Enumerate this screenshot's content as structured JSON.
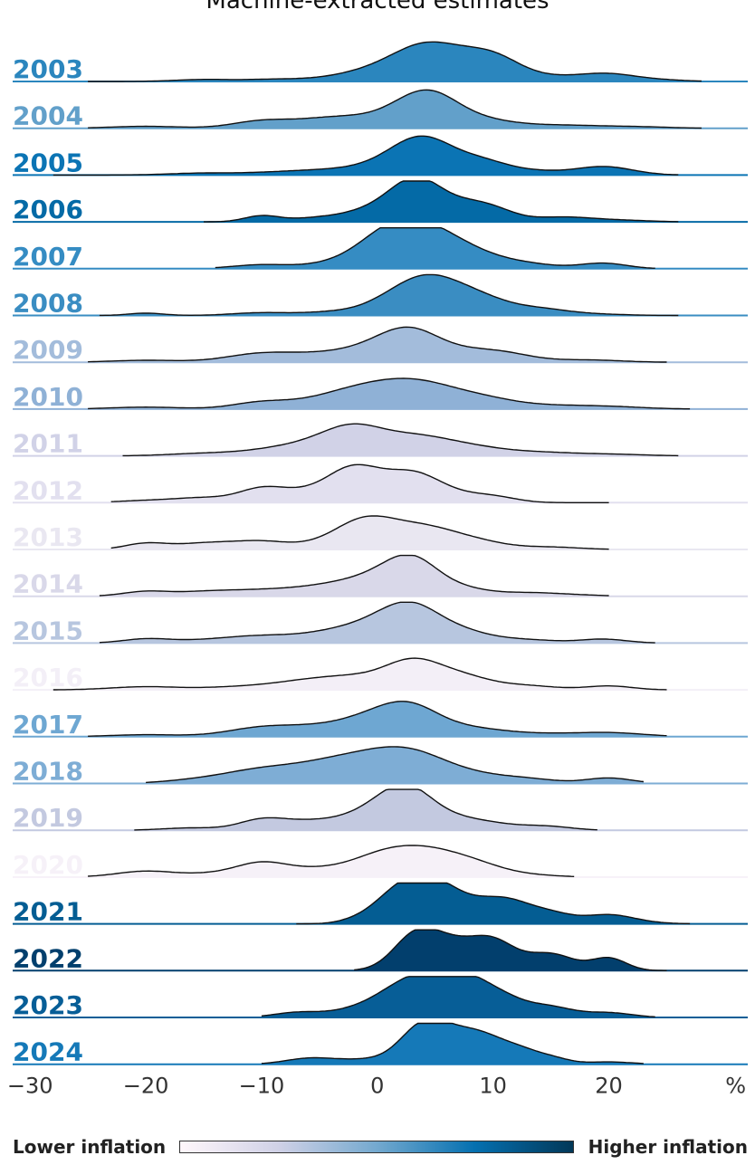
{
  "chart_data": {
    "type": "ridgeline",
    "title": "Machine-extracted estimates",
    "x_unit_label": "%",
    "x_ticks": [
      "−30",
      "−20",
      "−10",
      "0",
      "10",
      "20"
    ],
    "x_tick_values": [
      -30,
      -20,
      -10,
      0,
      10,
      20
    ],
    "xlim": [
      -31.5,
      32
    ],
    "colorbar": {
      "low_label": "Lower inflation",
      "high_label": "Higher inflation",
      "colors": [
        "#fff7fb",
        "#d0d1e6",
        "#74a9cf",
        "#0570b0",
        "#023858"
      ]
    },
    "series": [
      {
        "year": "2003",
        "color": "#2b86be",
        "range": [
          -25,
          28
        ],
        "peaks": [
          [
            -15,
            0.05,
            2.5
          ],
          [
            -9,
            0.05,
            2.5
          ],
          [
            -3,
            0.07,
            3
          ],
          [
            0,
            0.18,
            3
          ],
          [
            4.5,
            0.9,
            3
          ],
          [
            10,
            0.6,
            2.5
          ],
          [
            15,
            0.07,
            2
          ],
          [
            19.5,
            0.2,
            2.5
          ],
          [
            24,
            0.04,
            2.5
          ]
        ]
      },
      {
        "year": "2004",
        "color": "#62a0ca",
        "range": [
          -25,
          28
        ],
        "peaks": [
          [
            -20,
            0.05,
            3
          ],
          [
            -10,
            0.18,
            2.5
          ],
          [
            -4,
            0.25,
            3
          ],
          [
            2,
            0.3,
            3
          ],
          [
            4.5,
            0.7,
            2.5
          ],
          [
            9,
            0.2,
            3
          ],
          [
            16,
            0.07,
            3
          ],
          [
            22,
            0.04,
            3
          ]
        ]
      },
      {
        "year": "2005",
        "color": "#0b74b4",
        "range": [
          -28,
          26
        ],
        "peaks": [
          [
            -15,
            0.05,
            3
          ],
          [
            -8,
            0.07,
            3
          ],
          [
            -3,
            0.12,
            3
          ],
          [
            1,
            0.2,
            2.5
          ],
          [
            4,
            0.85,
            2.5
          ],
          [
            9,
            0.35,
            2.5
          ],
          [
            14,
            0.07,
            2
          ],
          [
            19.5,
            0.22,
            2.5
          ]
        ]
      },
      {
        "year": "2006",
        "color": "#046aa6",
        "range": [
          -15,
          26
        ],
        "peaks": [
          [
            -10,
            0.15,
            1.5
          ],
          [
            -5,
            0.1,
            2.5
          ],
          [
            0,
            0.3,
            2.5
          ],
          [
            3.5,
            1.0,
            2.2
          ],
          [
            7.5,
            0.3,
            2
          ],
          [
            10,
            0.28,
            2
          ],
          [
            16,
            0.12,
            2.5
          ],
          [
            21,
            0.04,
            2.5
          ]
        ]
      },
      {
        "year": "2007",
        "color": "#358cc3",
        "range": [
          -14,
          24
        ],
        "peaks": [
          [
            -10,
            0.1,
            2.5
          ],
          [
            -4,
            0.1,
            2.5
          ],
          [
            0,
            0.35,
            2.5
          ],
          [
            3,
            1.0,
            3
          ],
          [
            7.5,
            0.4,
            3
          ],
          [
            13,
            0.1,
            2.5
          ],
          [
            19.5,
            0.14,
            2
          ]
        ]
      },
      {
        "year": "2008",
        "color": "#3a8dc2",
        "range": [
          -24,
          26
        ],
        "peaks": [
          [
            -20,
            0.06,
            1.5
          ],
          [
            -10,
            0.07,
            2.5
          ],
          [
            -4,
            0.08,
            2.5
          ],
          [
            1,
            0.22,
            2.5
          ],
          [
            4.5,
            0.9,
            2.8
          ],
          [
            9,
            0.35,
            2.5
          ],
          [
            14,
            0.16,
            2.5
          ],
          [
            19,
            0.03,
            2.5
          ]
        ]
      },
      {
        "year": "2009",
        "color": "#a3bcdb",
        "range": [
          -25,
          25
        ],
        "peaks": [
          [
            -20,
            0.05,
            3
          ],
          [
            -10,
            0.22,
            3
          ],
          [
            -4,
            0.2,
            3
          ],
          [
            0,
            0.25,
            2.5
          ],
          [
            3,
            0.72,
            2.5
          ],
          [
            7.5,
            0.2,
            2.5
          ],
          [
            11,
            0.2,
            2.5
          ],
          [
            18,
            0.06,
            3
          ]
        ]
      },
      {
        "year": "2010",
        "color": "#8fb1d6",
        "range": [
          -25,
          27
        ],
        "peaks": [
          [
            -20,
            0.05,
            3
          ],
          [
            -10,
            0.17,
            2.5
          ],
          [
            -4,
            0.25,
            3
          ],
          [
            0,
            0.42,
            3
          ],
          [
            4,
            0.5,
            3
          ],
          [
            9,
            0.25,
            3
          ],
          [
            15,
            0.07,
            3
          ],
          [
            20,
            0.06,
            3
          ]
        ]
      },
      {
        "year": "2011",
        "color": "#d1d2e7",
        "range": [
          -22,
          26
        ],
        "peaks": [
          [
            -15,
            0.06,
            3
          ],
          [
            -9,
            0.12,
            3
          ],
          [
            -5,
            0.25,
            3
          ],
          [
            -2,
            0.55,
            2.5
          ],
          [
            3,
            0.45,
            3
          ],
          [
            8,
            0.2,
            3
          ],
          [
            14,
            0.08,
            3
          ],
          [
            20,
            0.04,
            3
          ]
        ]
      },
      {
        "year": "2012",
        "color": "#e2e0ef",
        "range": [
          -23,
          20
        ],
        "peaks": [
          [
            -20,
            0.05,
            2.5
          ],
          [
            -15,
            0.12,
            2.5
          ],
          [
            -10,
            0.32,
            2
          ],
          [
            -6,
            0.25,
            2.5
          ],
          [
            -2,
            0.8,
            2.2
          ],
          [
            3,
            0.75,
            2.5
          ],
          [
            7,
            0.1,
            2
          ],
          [
            10,
            0.15,
            2
          ]
        ]
      },
      {
        "year": "2013",
        "color": "#e9e7f1",
        "range": [
          -23,
          20
        ],
        "peaks": [
          [
            -20,
            0.15,
            1.8
          ],
          [
            -15,
            0.15,
            2.5
          ],
          [
            -10,
            0.2,
            2.5
          ],
          [
            -4,
            0.12,
            2.5
          ],
          [
            -1,
            0.65,
            2.5
          ],
          [
            4,
            0.55,
            3
          ],
          [
            9,
            0.14,
            2.5
          ],
          [
            15,
            0.06,
            2.5
          ]
        ]
      },
      {
        "year": "2014",
        "color": "#d9d8e9",
        "range": [
          -24,
          20
        ],
        "peaks": [
          [
            -20,
            0.12,
            2
          ],
          [
            -15,
            0.1,
            2.5
          ],
          [
            -10,
            0.14,
            3
          ],
          [
            -4,
            0.25,
            3
          ],
          [
            0,
            0.35,
            2.5
          ],
          [
            3,
            0.82,
            2.2
          ],
          [
            7,
            0.2,
            2.5
          ],
          [
            13,
            0.08,
            2.5
          ],
          [
            17,
            0.03,
            2.5
          ]
        ]
      },
      {
        "year": "2015",
        "color": "#b7c6df",
        "range": [
          -24,
          24
        ],
        "peaks": [
          [
            -20,
            0.1,
            2
          ],
          [
            -15,
            0.06,
            3
          ],
          [
            -10,
            0.16,
            3
          ],
          [
            -4,
            0.2,
            3
          ],
          [
            0,
            0.35,
            3
          ],
          [
            3,
            0.78,
            2.5
          ],
          [
            7.5,
            0.25,
            2.5
          ],
          [
            13,
            0.08,
            2.5
          ],
          [
            19.5,
            0.1,
            2
          ]
        ]
      },
      {
        "year": "2016",
        "color": "#f3eff7",
        "range": [
          -28,
          25
        ],
        "peaks": [
          [
            -20,
            0.08,
            3
          ],
          [
            -12,
            0.07,
            3
          ],
          [
            -6,
            0.22,
            3
          ],
          [
            -2,
            0.22,
            2.5
          ],
          [
            3,
            0.72,
            2.5
          ],
          [
            7.5,
            0.3,
            2.5
          ],
          [
            13,
            0.1,
            2.5
          ],
          [
            20,
            0.1,
            2
          ]
        ]
      },
      {
        "year": "2017",
        "color": "#6ea7d2",
        "range": [
          -25,
          25
        ],
        "peaks": [
          [
            -20,
            0.05,
            3
          ],
          [
            -10,
            0.22,
            3
          ],
          [
            -5,
            0.18,
            3
          ],
          [
            0,
            0.45,
            3
          ],
          [
            3,
            0.55,
            2.5
          ],
          [
            8,
            0.2,
            3
          ],
          [
            14,
            0.06,
            3
          ],
          [
            20,
            0.1,
            3
          ]
        ]
      },
      {
        "year": "2018",
        "color": "#7eadd5",
        "range": [
          -20,
          23
        ],
        "peaks": [
          [
            -15,
            0.1,
            3
          ],
          [
            -10,
            0.3,
            3
          ],
          [
            -5,
            0.35,
            3
          ],
          [
            -1,
            0.45,
            3
          ],
          [
            3,
            0.65,
            3
          ],
          [
            8,
            0.2,
            3
          ],
          [
            13,
            0.1,
            2.5
          ],
          [
            20,
            0.14,
            2
          ]
        ]
      },
      {
        "year": "2019",
        "color": "#c3c9e0",
        "range": [
          -21,
          19
        ],
        "peaks": [
          [
            -16,
            0.06,
            2.5
          ],
          [
            -10,
            0.25,
            2
          ],
          [
            -6,
            0.2,
            2.5
          ],
          [
            -1,
            0.35,
            2.5
          ],
          [
            2.5,
            1.0,
            2.3
          ],
          [
            7,
            0.25,
            2.5
          ],
          [
            11,
            0.1,
            2.5
          ],
          [
            15,
            0.08,
            2
          ]
        ]
      },
      {
        "year": "2020",
        "color": "#f6f1f8",
        "range": [
          -25,
          17
        ],
        "peaks": [
          [
            -20,
            0.15,
            2.5
          ],
          [
            -14,
            0.08,
            2.5
          ],
          [
            -10,
            0.32,
            2.2
          ],
          [
            -5,
            0.2,
            3
          ],
          [
            0,
            0.35,
            2.5
          ],
          [
            4,
            0.65,
            3
          ],
          [
            8.5,
            0.25,
            2.5
          ],
          [
            13,
            0.05,
            2.5
          ]
        ]
      },
      {
        "year": "2021",
        "color": "#045d93",
        "range": [
          -7,
          27
        ],
        "peaks": [
          [
            -2,
            0.05,
            1.5
          ],
          [
            2,
            0.85,
            2.2
          ],
          [
            5,
            0.7,
            2
          ],
          [
            8.5,
            0.45,
            2.5
          ],
          [
            11.5,
            0.38,
            2
          ],
          [
            15,
            0.25,
            2
          ],
          [
            20,
            0.22,
            2
          ],
          [
            23,
            0.03,
            2
          ]
        ]
      },
      {
        "year": "2022",
        "color": "#023f6d",
        "range": [
          -2,
          25
        ],
        "peaks": [
          [
            3,
            0.55,
            1.8
          ],
          [
            5.5,
            0.75,
            2.5
          ],
          [
            10,
            0.7,
            2
          ],
          [
            15,
            0.42,
            2
          ],
          [
            20,
            0.32,
            1.5
          ]
        ]
      },
      {
        "year": "2023",
        "color": "#075e97",
        "range": [
          -10,
          24
        ],
        "peaks": [
          [
            -7,
            0.12,
            2
          ],
          [
            -2,
            0.15,
            2.5
          ],
          [
            2,
            0.55,
            2.5
          ],
          [
            5,
            0.75,
            2.5
          ],
          [
            8,
            0.6,
            2
          ],
          [
            11,
            0.4,
            2
          ],
          [
            15,
            0.25,
            2
          ],
          [
            20,
            0.12,
            2
          ]
        ]
      },
      {
        "year": "2024",
        "color": "#1579b8",
        "range": [
          -10,
          23
        ],
        "peaks": [
          [
            -7,
            0.06,
            1.8
          ],
          [
            -5,
            0.12,
            2
          ],
          [
            -1,
            0.1,
            2
          ],
          [
            4,
            1.0,
            2
          ],
          [
            7.5,
            0.6,
            2
          ],
          [
            10,
            0.4,
            1.8
          ],
          [
            12.5,
            0.25,
            1.5
          ],
          [
            15,
            0.16,
            1.5
          ],
          [
            20,
            0.06,
            2
          ]
        ]
      }
    ]
  }
}
